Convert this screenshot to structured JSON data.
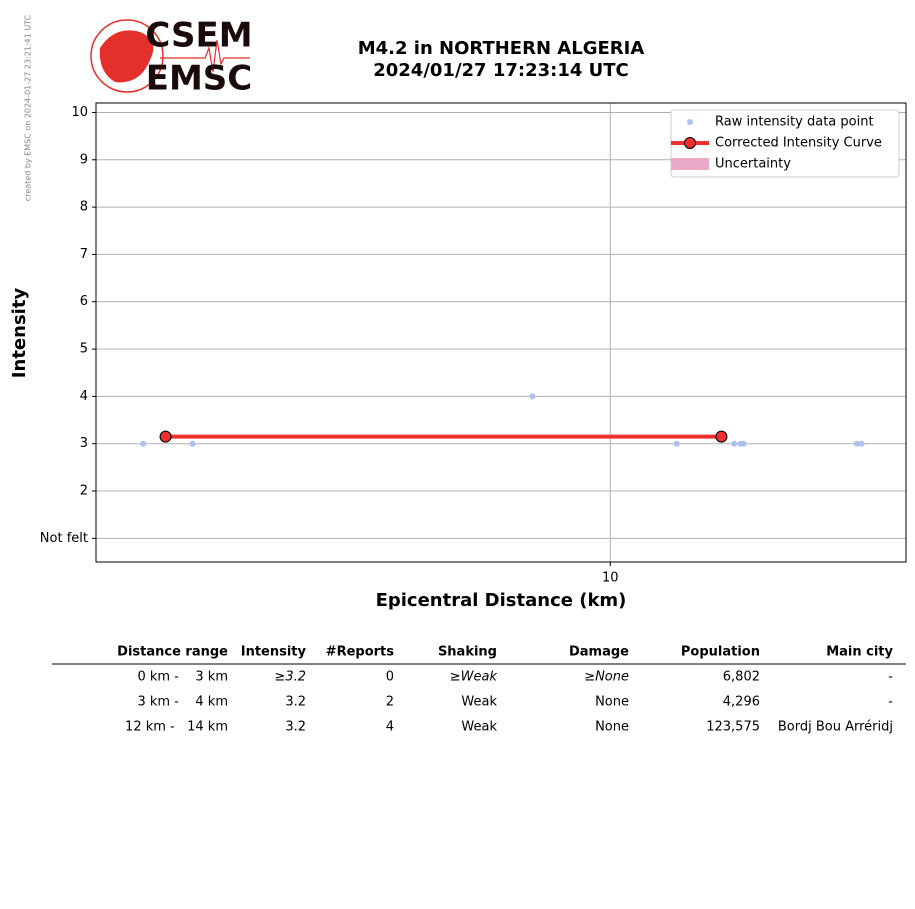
{
  "header": {
    "watermark": "created by EMSC on 2024-01-27 23:21:41 UTC",
    "logo": [
      "CSEM",
      "EMSC"
    ]
  },
  "chart_data": {
    "type": "line",
    "title": "M4.2 in NORTHERN ALGERIA",
    "subtitle": "2024/01/27 17:23:14 UTC",
    "x_label": "Epicentral Distance (km)",
    "y_label": "Intensity",
    "x_scale": "log",
    "xlim": [
      2.97,
      20.1
    ],
    "xticks": [
      10
    ],
    "ylim": [
      0.5,
      10.2
    ],
    "yticks": [
      {
        "value": 1,
        "label": "Not felt"
      },
      2,
      3,
      4,
      5,
      6,
      7,
      8,
      9,
      10
    ],
    "grid": true,
    "legend": "upper right",
    "series": [
      {
        "name": "Raw intensity data point",
        "color": "#aebfec",
        "style": "points",
        "x": [
          3.32,
          3.73,
          8.32,
          11.7,
          13.4,
          13.6,
          13.7,
          17.9,
          18.1
        ],
        "values": [
          3,
          3,
          4,
          3,
          3,
          3,
          3,
          3,
          3
        ]
      },
      {
        "name": "Corrected Intensity Curve",
        "color": "#ee3030",
        "style": "line",
        "x": [
          3.5,
          13
        ],
        "values": [
          3.15,
          3.15
        ]
      },
      {
        "name": "Uncertainty",
        "color": "#e8aac6",
        "style": "band",
        "x": [],
        "values": []
      }
    ]
  },
  "table": {
    "columns": [
      "Distance range",
      "Intensity",
      "#Reports",
      "Shaking",
      "Damage",
      "Population",
      "Main city"
    ],
    "rows": [
      [
        "0 km -    3 km",
        "≥3.2",
        "0",
        "≥Weak",
        "≥None",
        "6,802",
        "-"
      ],
      [
        "3 km -    4 km",
        "3.2",
        "2",
        "Weak",
        "None",
        "4,296",
        "-"
      ],
      [
        "12 km -   14 km",
        "3.2",
        "4",
        "Weak",
        "None",
        "123,575",
        "Bordj Bou Arréridj"
      ]
    ]
  }
}
